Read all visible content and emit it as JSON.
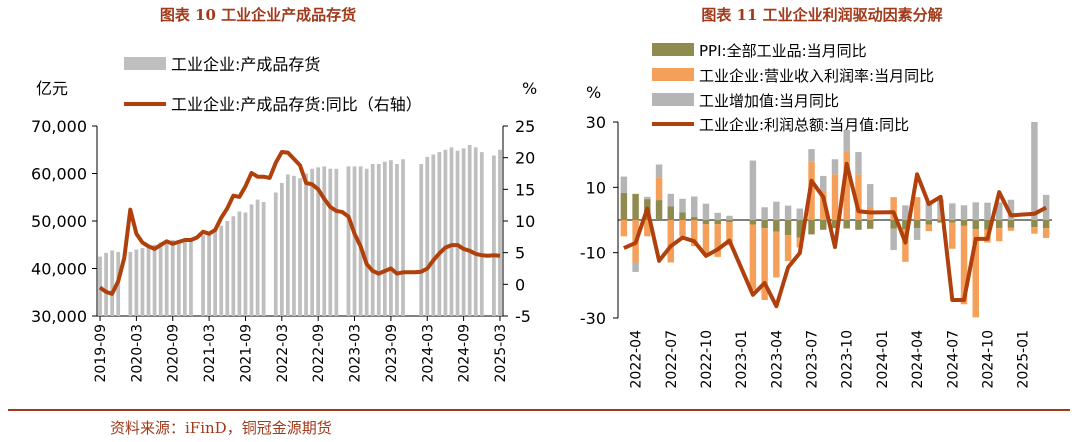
{
  "source": "资料来源：iFinD，铜冠金源期货",
  "colors": {
    "accent": "#a03a1b",
    "line": "#b0400c",
    "inventory_bar": "#bfbfbf",
    "ppi": "#8f8b4f",
    "margin": "#f5a05a",
    "value_added": "#b5b5b5",
    "divider": "#a03a1b"
  },
  "chart_data": [
    {
      "type": "bar",
      "title": "图表 10  工业企业产成品存货",
      "left_unit": "亿元",
      "right_unit": "%",
      "left_ylim": [
        30000,
        70000
      ],
      "left_ticks": [
        "30,000",
        "40,000",
        "50,000",
        "60,000",
        "70,000"
      ],
      "right_ylim": [
        -5,
        25
      ],
      "right_ticks": [
        "-5",
        "0",
        "5",
        "10",
        "15",
        "20",
        "25"
      ],
      "x_tick_labels": [
        "2019-09",
        "2020-03",
        "2020-09",
        "2021-03",
        "2021-09",
        "2022-03",
        "2022-09",
        "2023-03",
        "2023-09",
        "2024-03",
        "2024-09",
        "2025-03"
      ],
      "legend": [
        "工业企业:产成品存货",
        "工业企业:产成品存货:同比（右轴）"
      ],
      "months": [
        "2019-09",
        "2019-10",
        "2019-11",
        "2019-12",
        "2020-01",
        "2020-02",
        "2020-03",
        "2020-04",
        "2020-05",
        "2020-06",
        "2020-07",
        "2020-08",
        "2020-09",
        "2020-10",
        "2020-11",
        "2020-12",
        "2021-01",
        "2021-02",
        "2021-03",
        "2021-04",
        "2021-05",
        "2021-06",
        "2021-07",
        "2021-08",
        "2021-09",
        "2021-10",
        "2021-11",
        "2021-12",
        "2022-01",
        "2022-02",
        "2022-03",
        "2022-04",
        "2022-05",
        "2022-06",
        "2022-07",
        "2022-08",
        "2022-09",
        "2022-10",
        "2022-11",
        "2022-12",
        "2023-01",
        "2023-02",
        "2023-03",
        "2023-04",
        "2023-05",
        "2023-06",
        "2023-07",
        "2023-08",
        "2023-09",
        "2023-10",
        "2023-11",
        "2023-12",
        "2024-01",
        "2024-02",
        "2024-03",
        "2024-04",
        "2024-05",
        "2024-06",
        "2024-07",
        "2024-08",
        "2024-09",
        "2024-10",
        "2024-11",
        "2024-12",
        "2025-01",
        "2025-02",
        "2025-03"
      ],
      "series": [
        {
          "name": "工业企业:产成品存货",
          "axis": "left",
          "values": [
            42500,
            43300,
            43800,
            43500,
            null,
            43500,
            44000,
            44300,
            44700,
            45000,
            45500,
            45500,
            46000,
            45800,
            46200,
            46000,
            null,
            47000,
            47200,
            48000,
            49000,
            50000,
            51000,
            52000,
            51800,
            53500,
            54500,
            54000,
            null,
            56000,
            58000,
            59800,
            59500,
            59000,
            60000,
            61000,
            61300,
            61500,
            61000,
            61000,
            null,
            61500,
            61500,
            61500,
            61000,
            62000,
            62000,
            62500,
            62800,
            62000,
            63000,
            null,
            null,
            62000,
            63500,
            64000,
            64500,
            65000,
            65500,
            64800,
            65300,
            66000,
            65500,
            64500,
            null,
            63800,
            65000
          ]
        },
        {
          "name": "工业企业:产成品存货:同比（右轴）",
          "axis": "right",
          "values": [
            -0.5,
            -1.2,
            -1.5,
            0.5,
            4.2,
            11.8,
            8,
            6.6,
            6,
            5.6,
            6.2,
            6.8,
            6.4,
            6.7,
            7,
            7,
            7.4,
            8.3,
            8,
            8.6,
            10.5,
            12,
            14,
            13.8,
            15.5,
            17.6,
            17,
            17,
            16.8,
            19.2,
            20.9,
            20.8,
            19.8,
            18.8,
            16,
            15.8,
            15,
            13.5,
            12.2,
            11.6,
            11.4,
            10.7,
            8,
            6,
            3.2,
            2.1,
            1.7,
            2.1,
            2.5,
            1.7,
            1.9,
            1.9,
            1.9,
            2,
            2.5,
            3.8,
            4.9,
            5.8,
            6.2,
            6.2,
            5.6,
            5.3,
            4.8,
            4.6,
            4.5,
            4.6,
            4.5
          ]
        }
      ]
    },
    {
      "type": "bar",
      "title": "图表 11  工业企业利润驱动因素分解",
      "unit": "%",
      "ylim": [
        -30,
        30
      ],
      "y_ticks": [
        "-30",
        "-10",
        "10",
        "30"
      ],
      "x_tick_labels": [
        "2022-04",
        "2022-07",
        "2022-10",
        "2023-01",
        "2023-04",
        "2023-07",
        "2023-10",
        "2024-01",
        "2024-04",
        "2024-07",
        "2024-10",
        "2025-01"
      ],
      "legend": [
        "PPI:全部工业品:当月同比",
        "工业企业:营业收入利润率:当月同比",
        "工业增加值:当月同比",
        "工业企业:利润总额:当月值:同比"
      ],
      "months": [
        "2022-03",
        "2022-04",
        "2022-05",
        "2022-06",
        "2022-07",
        "2022-08",
        "2022-09",
        "2022-10",
        "2022-11",
        "2022-12",
        "2023-01",
        "2023-02",
        "2023-03",
        "2023-04",
        "2023-05",
        "2023-06",
        "2023-07",
        "2023-08",
        "2023-09",
        "2023-10",
        "2023-11",
        "2023-12",
        "2024-01",
        "2024-02",
        "2024-03",
        "2024-04",
        "2024-05",
        "2024-06",
        "2024-07",
        "2024-08",
        "2024-09",
        "2024-10",
        "2024-11",
        "2024-12",
        "2025-01",
        "2025-02",
        "2025-03"
      ],
      "series": [
        {
          "name": "PPI:全部工业品:当月同比",
          "values": [
            8.3,
            8,
            6.4,
            6.1,
            4.2,
            2.3,
            0.9,
            -1.3,
            -1.3,
            -0.7,
            null,
            -1.4,
            -2.5,
            -3.6,
            -4.6,
            -5.4,
            -4.4,
            -3,
            -2.5,
            -2.6,
            -3,
            -2.7,
            null,
            -2.7,
            -2.8,
            -2.5,
            -1.4,
            -0.8,
            -0.8,
            -1.8,
            -2.8,
            -2.9,
            -2.5,
            -2.3,
            null,
            -2.2,
            -2.5
          ]
        },
        {
          "name": "工业企业:营业收入利润率:当月同比",
          "values": [
            -5,
            -13,
            -5,
            7,
            -13,
            -5,
            -8,
            -9,
            -10,
            -7,
            null,
            -20,
            -22,
            -14,
            -8,
            -3,
            18,
            9,
            14,
            21,
            14,
            4,
            null,
            7,
            -10,
            7,
            -2,
            1,
            -8,
            -24,
            -27,
            -4,
            -4,
            -1,
            null,
            -2,
            -3
          ]
        },
        {
          "name": "工业增加值:当月同比",
          "values": [
            5,
            -2.9,
            0.7,
            3.9,
            3.8,
            4.2,
            6.3,
            5,
            2.2,
            1.3,
            null,
            18.2,
            3.9,
            5.6,
            4.4,
            3.5,
            3.7,
            4.5,
            4.6,
            6.6,
            6.8,
            7,
            null,
            -6.5,
            4.5,
            -3.6,
            5.6,
            5.3,
            5.1,
            4.5,
            5.4,
            5.3,
            5.4,
            6.2,
            null,
            30,
            7.7
          ]
        },
        {
          "name": "工业企业:利润总额:当月值:同比",
          "values": [
            -8.6,
            -7,
            3.5,
            -12.5,
            -8,
            -5.4,
            -6.5,
            -11,
            -9,
            -6.3,
            null,
            -22.9,
            -19.3,
            -26.4,
            -14.5,
            -10.1,
            12,
            7,
            -8.3,
            17.2,
            2.7,
            2.3,
            null,
            2.4,
            -6.9,
            14,
            4.9,
            7.1,
            -24.5,
            -24.5,
            -5.8,
            -5.8,
            8.5,
            1.4,
            null,
            1.9,
            3.8
          ]
        }
      ]
    }
  ]
}
